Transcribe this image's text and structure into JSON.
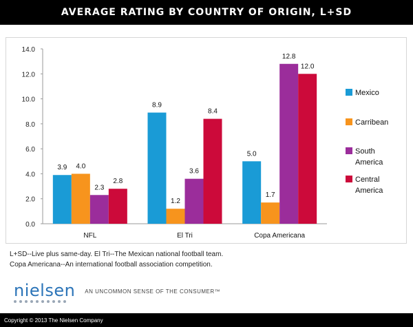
{
  "header": {
    "title": "AVERAGE RATING BY COUNTRY OF ORIGIN, L+SD"
  },
  "chart_data": {
    "type": "bar",
    "title": "AVERAGE RATING BY COUNTRY OF ORIGIN, L+SD",
    "xlabel": "",
    "ylabel": "",
    "ylim": [
      0,
      14
    ],
    "yticks": [
      "0.0",
      "2.0",
      "4.0",
      "6.0",
      "8.0",
      "10.0",
      "12.0",
      "14.0"
    ],
    "grid": false,
    "legend_position": "right",
    "categories": [
      "NFL",
      "El Tri",
      "Copa Americana"
    ],
    "series": [
      {
        "name": "Mexico",
        "color": "#1a9bd6",
        "values": [
          3.9,
          8.9,
          5.0
        ]
      },
      {
        "name": "Carribean",
        "color": "#f7941d",
        "values": [
          4.0,
          1.2,
          1.7
        ]
      },
      {
        "name": "South America",
        "color": "#9b2d9b",
        "values": [
          2.3,
          3.6,
          12.8
        ]
      },
      {
        "name": "Central America",
        "color": "#cc0a3a",
        "values": [
          2.8,
          8.4,
          12.0
        ]
      }
    ],
    "legend_lines": [
      [
        "Mexico"
      ],
      [
        "Carribean"
      ],
      [
        "South",
        "America"
      ],
      [
        "Central",
        "America"
      ]
    ]
  },
  "notes": {
    "line1": "L+SD--Live plus same-day. El Tri--The Mexican national football team.",
    "line2": "Copa Americana--An international football association competition."
  },
  "branding": {
    "logo": "nielsen",
    "tagline": "AN UNCOMMON SENSE OF THE CONSUMER™",
    "copyright": "Copyright © 2013 The Nielsen Company"
  }
}
